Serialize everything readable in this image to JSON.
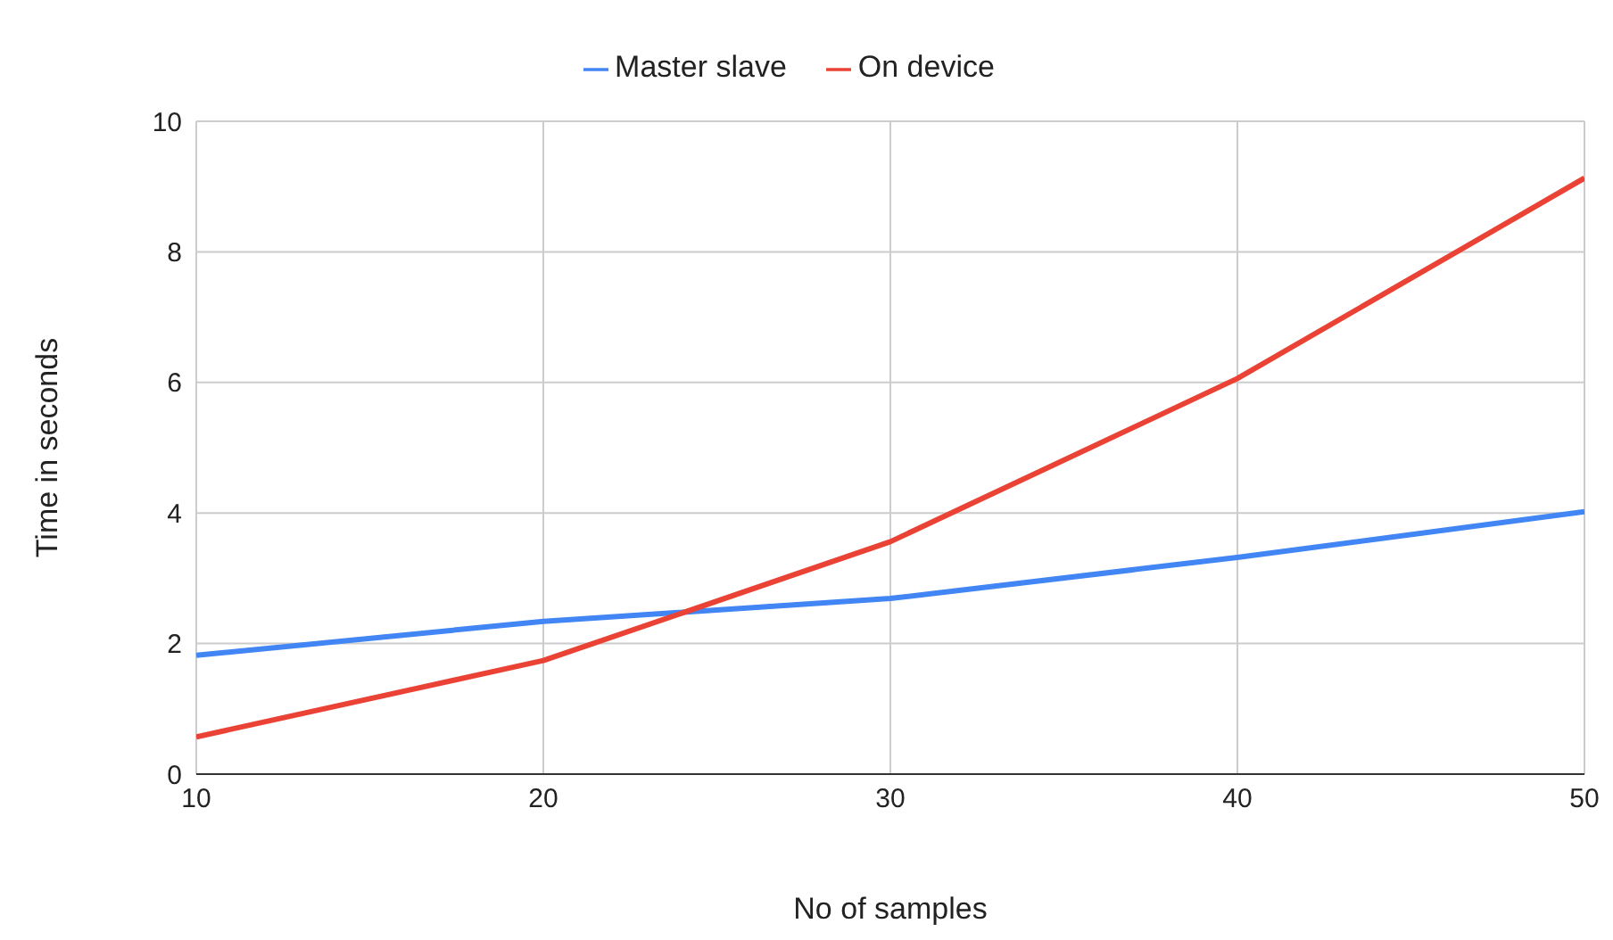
{
  "chart_data": {
    "type": "line",
    "xlabel": "No of samples",
    "ylabel": "Time in seconds",
    "x": [
      10,
      20,
      30,
      40,
      50
    ],
    "series": [
      {
        "name": "Master slave",
        "color": "#4285f4",
        "values": [
          1.82,
          2.34,
          2.69,
          3.32,
          4.02
        ]
      },
      {
        "name": "On device",
        "color": "#ea4335",
        "values": [
          0.57,
          1.74,
          3.56,
          6.06,
          9.13
        ]
      }
    ],
    "xlim": [
      10,
      50
    ],
    "xticks": [
      10,
      20,
      30,
      40,
      50
    ],
    "ylim": [
      0,
      10
    ],
    "yticks": [
      0,
      2,
      4,
      6,
      8,
      10
    ],
    "grid": true,
    "legend": "top",
    "marker": "none",
    "line_style": "solid"
  }
}
